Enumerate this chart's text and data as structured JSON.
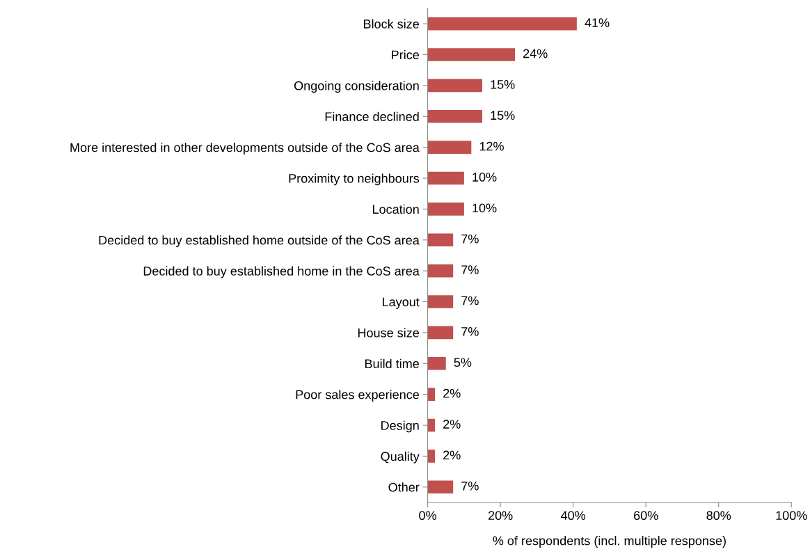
{
  "chart_data": {
    "type": "bar",
    "orientation": "horizontal",
    "categories": [
      "Block size",
      "Price",
      "Ongoing consideration",
      "Finance declined",
      "More interested in other developments outside of the CoS area",
      "Proximity to neighbours",
      "Location",
      "Decided to buy established home outside of the CoS area",
      "Decided to buy established home in the CoS area",
      "Layout",
      "House size",
      "Build time",
      "Poor sales experience",
      "Design",
      "Quality",
      "Other"
    ],
    "values": [
      41,
      24,
      15,
      15,
      12,
      10,
      10,
      7,
      7,
      7,
      7,
      5,
      2,
      2,
      2,
      7
    ],
    "value_labels": [
      "41%",
      "24%",
      "15%",
      "15%",
      "12%",
      "10%",
      "10%",
      "7%",
      "7%",
      "7%",
      "7%",
      "5%",
      "2%",
      "2%",
      "2%",
      "7%"
    ],
    "color": "#c0504d",
    "xlabel": "% of respondents (incl. multiple response)",
    "xlim": [
      0,
      100
    ],
    "xticks": [
      {
        "value": 0,
        "label": "0%"
      },
      {
        "value": 20,
        "label": "20%"
      },
      {
        "value": 40,
        "label": "40%"
      },
      {
        "value": 60,
        "label": "60%"
      },
      {
        "value": 80,
        "label": "80%"
      },
      {
        "value": 100,
        "label": "100%"
      }
    ],
    "grid": false,
    "legend": false
  }
}
